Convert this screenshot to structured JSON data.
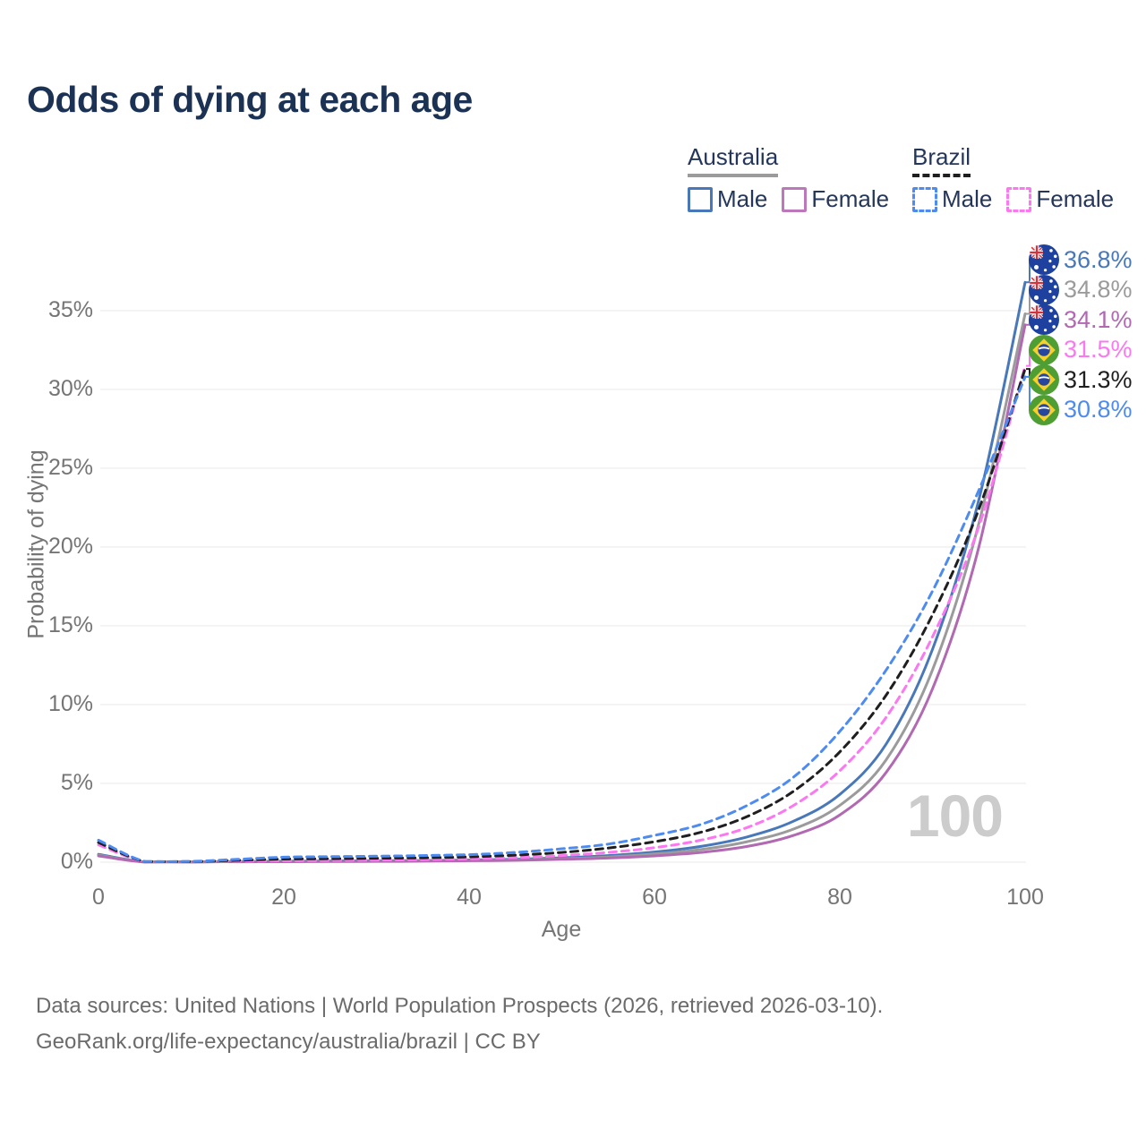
{
  "title": "Odds of dying at each age",
  "watermark": {
    "text": "100"
  },
  "legend": {
    "groups": [
      {
        "country": "Australia",
        "underline_style": "solid",
        "underline_color": "#9b9b9b",
        "items": [
          {
            "label": "Male",
            "color": "#4878b9",
            "style": "solid"
          },
          {
            "label": "Female",
            "color": "#bd77bb",
            "style": "solid"
          }
        ]
      },
      {
        "country": "Brazil",
        "underline_style": "dashed",
        "underline_color": "#1f1f1f",
        "items": [
          {
            "label": "Male",
            "color": "#4e8bf0",
            "style": "dashed"
          },
          {
            "label": "Female",
            "color": "#fb78f0",
            "style": "dashed"
          }
        ]
      }
    ]
  },
  "axes": {
    "x": {
      "label": "Age",
      "tick_labels": [
        "0",
        "20",
        "40",
        "60",
        "80",
        "100"
      ]
    },
    "y": {
      "label": "Probability of dying",
      "tick_labels": [
        "0%",
        "5%",
        "10%",
        "15%",
        "20%",
        "25%",
        "30%",
        "35%"
      ]
    }
  },
  "end_labels": [
    {
      "value": "36.8%",
      "color": "#4878b9",
      "flag": "australia"
    },
    {
      "value": "34.8%",
      "color": "#9b9b9b",
      "flag": "australia"
    },
    {
      "value": "34.1%",
      "color": "#b169b1",
      "flag": "australia"
    },
    {
      "value": "31.5%",
      "color": "#fb78f0",
      "flag": "brazil"
    },
    {
      "value": "31.3%",
      "color": "#1f1f1f",
      "flag": "brazil"
    },
    {
      "value": "30.8%",
      "color": "#4e8bf0",
      "flag": "brazil"
    }
  ],
  "chart_data": {
    "type": "line",
    "title": "Odds of dying at each age",
    "xlabel": "Age",
    "ylabel": "Probability of dying",
    "xlim": [
      0,
      100
    ],
    "ylim_percent": [
      0,
      38.5
    ],
    "x_ticks": [
      0,
      20,
      40,
      60,
      80,
      100
    ],
    "y_ticks_percent": [
      0,
      5,
      10,
      15,
      20,
      25,
      30,
      35
    ],
    "grid": "horizontal-only",
    "legend_position": "top-right",
    "ages": [
      0,
      5,
      10,
      15,
      20,
      25,
      30,
      35,
      40,
      45,
      50,
      55,
      60,
      65,
      70,
      75,
      80,
      85,
      90,
      95,
      100
    ],
    "series": [
      {
        "name": "Australia Male",
        "country": "Australia",
        "sex": "Male",
        "style": "solid",
        "color": "#4878b9",
        "end_label": "36.8%",
        "end_value_percent": 36.8,
        "values_percent": [
          0.5,
          0.01,
          0.01,
          0.04,
          0.07,
          0.08,
          0.09,
          0.11,
          0.14,
          0.19,
          0.28,
          0.42,
          0.65,
          1.0,
          1.6,
          2.6,
          4.3,
          7.5,
          13.5,
          23.0,
          36.8
        ]
      },
      {
        "name": "Australia Both sexes",
        "country": "Australia",
        "sex": "All",
        "style": "solid",
        "color": "#9b9b9b",
        "end_label": "34.8%",
        "end_value_percent": 34.8,
        "values_percent": [
          0.45,
          0.01,
          0.01,
          0.03,
          0.05,
          0.06,
          0.07,
          0.09,
          0.11,
          0.15,
          0.22,
          0.33,
          0.52,
          0.8,
          1.3,
          2.1,
          3.6,
          6.5,
          12.2,
          21.5,
          34.8
        ]
      },
      {
        "name": "Australia Female",
        "country": "Australia",
        "sex": "Female",
        "style": "solid",
        "color": "#b169b1",
        "end_label": "34.1%",
        "end_value_percent": 34.1,
        "values_percent": [
          0.4,
          0.01,
          0.01,
          0.02,
          0.03,
          0.04,
          0.05,
          0.06,
          0.09,
          0.12,
          0.18,
          0.26,
          0.4,
          0.62,
          1.0,
          1.7,
          3.0,
          5.7,
          11.0,
          20.0,
          34.1
        ]
      },
      {
        "name": "Brazil Female",
        "country": "Brazil",
        "sex": "Female",
        "style": "dashed",
        "color": "#fb78f0",
        "end_label": "31.5%",
        "end_value_percent": 31.5,
        "values_percent": [
          1.1,
          0.03,
          0.03,
          0.06,
          0.09,
          0.11,
          0.13,
          0.16,
          0.21,
          0.29,
          0.42,
          0.62,
          0.92,
          1.4,
          2.2,
          3.6,
          5.8,
          9.2,
          14.3,
          21.3,
          31.5
        ]
      },
      {
        "name": "Brazil Both sexes",
        "country": "Brazil",
        "sex": "All",
        "style": "dashed",
        "color": "#1f1f1f",
        "end_label": "31.3%",
        "end_value_percent": 31.3,
        "values_percent": [
          1.25,
          0.04,
          0.04,
          0.12,
          0.2,
          0.22,
          0.25,
          0.28,
          0.34,
          0.45,
          0.62,
          0.9,
          1.3,
          1.9,
          2.9,
          4.5,
          7.0,
          10.6,
          15.7,
          22.4,
          31.3
        ]
      },
      {
        "name": "Brazil Male",
        "country": "Brazil",
        "sex": "Male",
        "style": "dashed",
        "color": "#4e8bf0",
        "end_label": "30.8%",
        "end_value_percent": 30.8,
        "values_percent": [
          1.4,
          0.05,
          0.05,
          0.18,
          0.32,
          0.35,
          0.38,
          0.42,
          0.48,
          0.62,
          0.85,
          1.15,
          1.7,
          2.4,
          3.6,
          5.4,
          8.3,
          12.2,
          17.2,
          23.6,
          30.8
        ]
      }
    ]
  },
  "colors": {
    "title": "#1c3254",
    "grid": "#e9e9e9",
    "axis_text": "#757575",
    "watermark": "#cccccc"
  },
  "footer": {
    "line1": "Data sources: United Nations | World Population Prospects (2026, retrieved 2026-03-10).",
    "line2": "GeoRank.org/life-expectancy/australia/brazil | CC BY"
  }
}
